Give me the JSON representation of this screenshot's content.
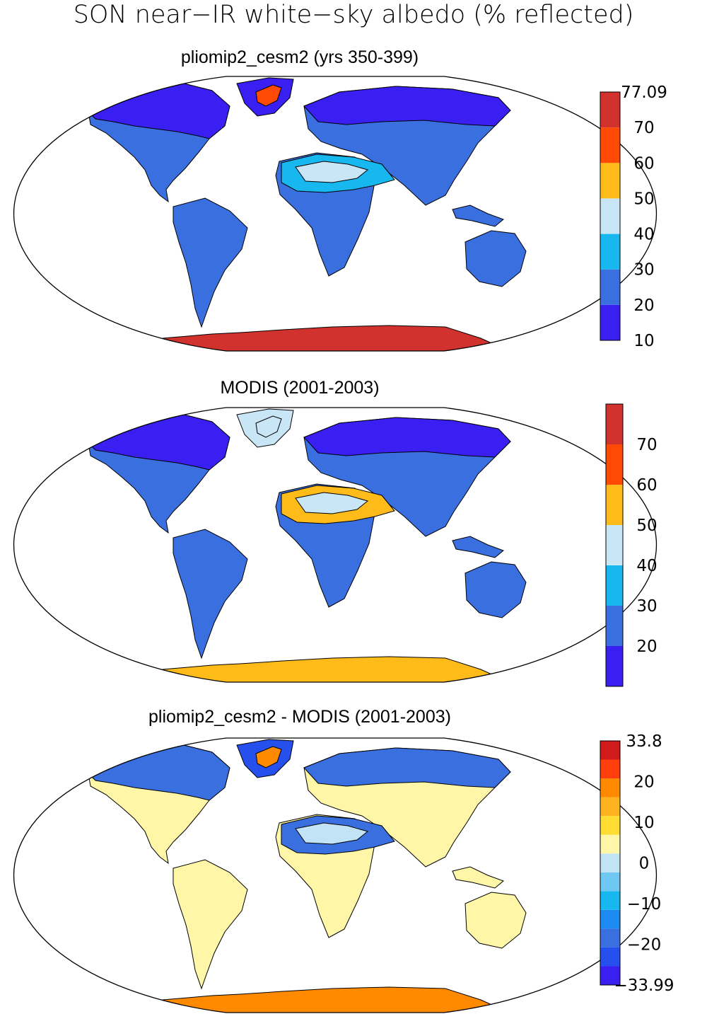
{
  "title": "SON near−IR white−sky albedo (% reflected)",
  "panels": [
    {
      "id": "model",
      "title": "pliomip2_cesm2 (yrs 350-399)",
      "colorbar": {
        "colors": [
          "#3a1ff2",
          "#3a6fe0",
          "#17b8f0",
          "#c9e6f7",
          "#ffbb1a",
          "#ff4a05",
          "#d1322e"
        ],
        "labels": [
          "10",
          "20",
          "30",
          "40",
          "50",
          "60",
          "70",
          "77.09"
        ]
      },
      "regions": {
        "land": "#3a6fe0",
        "northern_high_latitudes": "#3a1ff2",
        "sahara_arabia": "#17b8f0",
        "sahara_bright": "#c9e6f7",
        "greenland": "#3a1ff2",
        "greenland_core": "#ff4a05",
        "antarctica": "#d1322e"
      }
    },
    {
      "id": "obs",
      "title": "MODIS (2001-2003)",
      "colorbar": {
        "colors": [
          "#3a1ff2",
          "#3a6fe0",
          "#17b8f0",
          "#c9e6f7",
          "#ffbb1a",
          "#ff4a05",
          "#d1322e"
        ],
        "labels": [
          "",
          "20",
          "30",
          "40",
          "50",
          "60",
          "70",
          ""
        ]
      },
      "regions": {
        "land": "#3a6fe0",
        "northern_high_latitudes": "#3a1ff2",
        "sahara_arabia": "#ffbb1a",
        "sahara_bright": "#c9e6f7",
        "greenland": "#c9e6f7",
        "greenland_core": "#c9e6f7",
        "antarctica": "#ffbb1a"
      }
    },
    {
      "id": "diff",
      "title": "pliomip2_cesm2 - MODIS (2001-2003)",
      "colorbar": {
        "colors": [
          "#3a1ff2",
          "#2650ee",
          "#3a6fe0",
          "#1b8bf2",
          "#17b8f0",
          "#6fc8f3",
          "#c2e3f6",
          "#fff6a8",
          "#ffdd33",
          "#ffb41f",
          "#ff8a00",
          "#ff3d0d",
          "#d11a1a"
        ],
        "labels": [
          "−33.99",
          "−20",
          "−10",
          "0",
          "10",
          "20",
          "33.8"
        ]
      },
      "regions": {
        "land": "#fff6a8",
        "northern_high_latitudes": "#3a6fe0",
        "sahara_arabia": "#3a6fe0",
        "sahara_bright": "#c2e3f6",
        "greenland": "#2650ee",
        "greenland_core": "#ff8a00",
        "antarctica": "#ff8a00"
      }
    }
  ]
}
